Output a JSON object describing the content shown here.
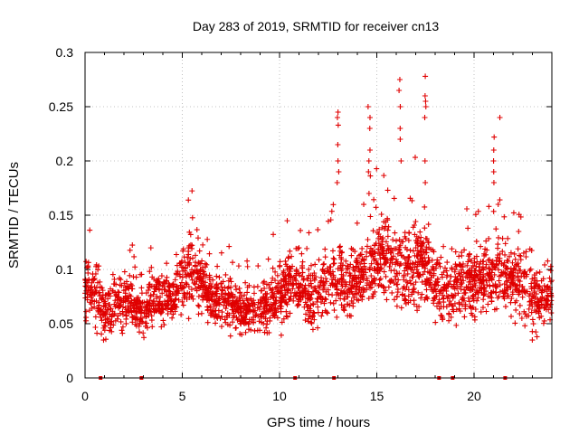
{
  "chart_data": {
    "type": "scatter",
    "title": "Day 283 of 2019, SRMTID for receiver cn13",
    "xlabel": "GPS time / hours",
    "ylabel": "SRMTID / TECUs",
    "xlim": [
      0,
      24
    ],
    "ylim": [
      0,
      0.3
    ],
    "x_ticks": [
      0,
      5,
      10,
      15,
      20
    ],
    "x_tick_labels": [
      "0",
      "5",
      "10",
      "15",
      "20"
    ],
    "y_ticks": [
      0,
      0.05,
      0.1,
      0.15,
      0.2,
      0.25,
      0.3
    ],
    "y_tick_labels": [
      "0",
      "0.05",
      "0.1",
      "0.15",
      "0.2",
      "0.25",
      "0.3"
    ],
    "grid": true,
    "marker": "+",
    "series_color": "#e00000",
    "series": [
      {
        "name": "SRMTID",
        "envelope": {
          "x": [
            0,
            0.5,
            1,
            1.5,
            2,
            2.5,
            3,
            3.5,
            4,
            4.5,
            5,
            5.5,
            6,
            6.5,
            7,
            7.5,
            8,
            8.5,
            9,
            9.5,
            10,
            10.5,
            11,
            11.5,
            12,
            12.5,
            13,
            13.5,
            14,
            14.5,
            15,
            15.5,
            16,
            16.5,
            17,
            17.5,
            18,
            18.5,
            19,
            19.5,
            20,
            20.5,
            21,
            21.5,
            22,
            22.5,
            23,
            23.5,
            24
          ],
          "mean": [
            0.085,
            0.08,
            0.058,
            0.068,
            0.07,
            0.065,
            0.06,
            0.075,
            0.075,
            0.07,
            0.09,
            0.1,
            0.09,
            0.075,
            0.07,
            0.07,
            0.06,
            0.06,
            0.065,
            0.07,
            0.08,
            0.085,
            0.085,
            0.075,
            0.08,
            0.085,
            0.09,
            0.085,
            0.09,
            0.1,
            0.11,
            0.115,
            0.1,
            0.095,
            0.11,
            0.105,
            0.085,
            0.08,
            0.085,
            0.09,
            0.09,
            0.09,
            0.09,
            0.1,
            0.09,
            0.085,
            0.075,
            0.07,
            0.08
          ],
          "spread": [
            0.02,
            0.025,
            0.02,
            0.025,
            0.025,
            0.02,
            0.02,
            0.02,
            0.02,
            0.02,
            0.025,
            0.03,
            0.025,
            0.02,
            0.02,
            0.02,
            0.02,
            0.02,
            0.02,
            0.02,
            0.025,
            0.025,
            0.025,
            0.025,
            0.025,
            0.025,
            0.03,
            0.025,
            0.025,
            0.03,
            0.03,
            0.03,
            0.03,
            0.03,
            0.035,
            0.03,
            0.025,
            0.025,
            0.025,
            0.025,
            0.025,
            0.025,
            0.025,
            0.025,
            0.025,
            0.025,
            0.025,
            0.025,
            0.03
          ]
        },
        "peaks": [
          {
            "x": 13.0,
            "values": [
              0.245,
              0.24,
              0.233,
              0.215,
              0.2,
              0.19,
              0.18
            ]
          },
          {
            "x": 14.6,
            "values": [
              0.25,
              0.24,
              0.23,
              0.21,
              0.2,
              0.19,
              0.17
            ]
          },
          {
            "x": 16.2,
            "values": [
              0.275,
              0.265,
              0.25,
              0.23,
              0.22,
              0.2
            ]
          },
          {
            "x": 17.5,
            "values": [
              0.278,
              0.26,
              0.255,
              0.25,
              0.24,
              0.2,
              0.18
            ]
          },
          {
            "x": 21.0,
            "values": [
              0.222,
              0.21,
              0.2,
              0.19,
              0.18
            ]
          },
          {
            "x": 21.3,
            "values": [
              0.24,
              0.16
            ]
          }
        ],
        "zero_points": [
          0.8,
          2.9,
          10.8,
          12.8,
          18.2,
          18.9,
          21.6
        ]
      }
    ]
  }
}
